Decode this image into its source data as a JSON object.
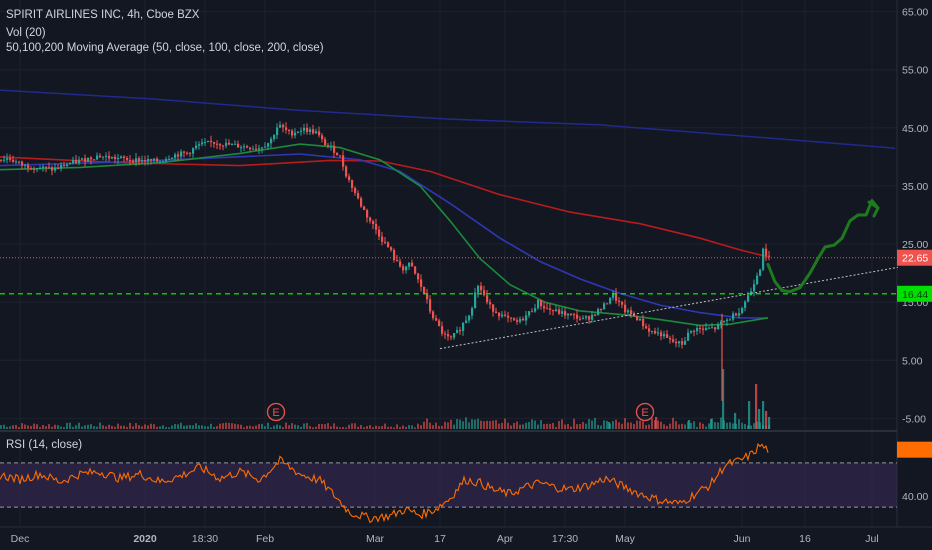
{
  "legend": {
    "symbol": "SPIRIT AIRLINES INC, 4h, Cboe BZX",
    "volume": "Vol (20)",
    "ma": "50,100,200 Moving Average (50, close, 100, close, 200, close)",
    "rsi": "RSI (14, close)"
  },
  "colors": {
    "background": "#131722",
    "up": "#26a69a",
    "down": "#ef5350",
    "ma50": "#1b8a3a",
    "ma100": "#2f37b4",
    "ma200": "#b71c1c",
    "rsi_line": "#ff6d00",
    "rsi_band": "#3b2a5a",
    "support": "#00ff00",
    "projection": "#1e7a1e",
    "resistance_line": "#ef5350"
  },
  "chart_data": {
    "type": "candlestick",
    "price_axis": {
      "ticks": [
        "65.00",
        "55.00",
        "45.00",
        "35.00",
        "25.00",
        "15.00",
        "5.00",
        "-5.00"
      ],
      "tick_values": [
        65,
        55,
        45,
        35,
        25,
        15,
        5,
        -5
      ],
      "ylim": [
        -7,
        67
      ]
    },
    "rsi_axis": {
      "ticks": [
        "80.00",
        "40.00"
      ],
      "tick_values": [
        80,
        40
      ],
      "band": [
        30,
        70
      ],
      "ylim": [
        12,
        98
      ]
    },
    "x_axis": {
      "labels": [
        "Dec",
        "2020",
        "18:30",
        "Feb",
        "Mar",
        "17",
        "Apr",
        "17:30",
        "May",
        "Jun",
        "16",
        "Jul"
      ],
      "bold_labels": [
        "2020"
      ]
    },
    "price_path": [
      [
        0,
        39.5
      ],
      [
        10,
        39.8
      ],
      [
        25,
        38.5
      ],
      [
        40,
        38.2
      ],
      [
        55,
        37.8
      ],
      [
        70,
        38.8
      ],
      [
        85,
        39.5
      ],
      [
        100,
        40.2
      ],
      [
        115,
        39.8
      ],
      [
        130,
        39.6
      ],
      [
        145,
        39.4
      ],
      [
        160,
        39.2
      ],
      [
        175,
        40.3
      ],
      [
        190,
        40.7
      ],
      [
        200,
        42.0
      ],
      [
        215,
        42.5
      ],
      [
        230,
        42.1
      ],
      [
        245,
        41.8
      ],
      [
        260,
        41.5
      ],
      [
        272,
        42.6
      ],
      [
        280,
        45.5
      ],
      [
        292,
        44.0
      ],
      [
        305,
        44.8
      ],
      [
        318,
        44.2
      ],
      [
        325,
        42.5
      ],
      [
        335,
        41.3
      ],
      [
        342,
        40.0
      ],
      [
        348,
        37.0
      ],
      [
        355,
        34.5
      ],
      [
        362,
        32.0
      ],
      [
        370,
        29.5
      ],
      [
        378,
        27.5
      ],
      [
        385,
        25.5
      ],
      [
        392,
        24.0
      ],
      [
        398,
        21.8
      ],
      [
        405,
        20.8
      ],
      [
        412,
        21.5
      ],
      [
        418,
        19.5
      ],
      [
        422,
        18.0
      ],
      [
        427,
        16.2
      ],
      [
        432,
        13.5
      ],
      [
        438,
        11.5
      ],
      [
        445,
        9.5
      ],
      [
        452,
        8.5
      ],
      [
        460,
        10.0
      ],
      [
        467,
        11.8
      ],
      [
        473,
        13.5
      ],
      [
        478,
        18.0
      ],
      [
        484,
        17.0
      ],
      [
        490,
        14.5
      ],
      [
        497,
        13.5
      ],
      [
        505,
        12.5
      ],
      [
        513,
        11.8
      ],
      [
        520,
        11.5
      ],
      [
        527,
        12.5
      ],
      [
        533,
        13.5
      ],
      [
        540,
        15.0
      ],
      [
        547,
        14.0
      ],
      [
        555,
        13.5
      ],
      [
        562,
        13.2
      ],
      [
        570,
        12.8
      ],
      [
        578,
        12.5
      ],
      [
        585,
        12.0
      ],
      [
        592,
        12.5
      ],
      [
        600,
        13.5
      ],
      [
        607,
        14.5
      ],
      [
        614,
        16.5
      ],
      [
        620,
        15.0
      ],
      [
        627,
        13.5
      ],
      [
        634,
        12.8
      ],
      [
        641,
        12.0
      ],
      [
        648,
        10.5
      ],
      [
        655,
        9.8
      ],
      [
        663,
        9.5
      ],
      [
        670,
        8.5
      ],
      [
        677,
        8.0
      ],
      [
        684,
        7.8
      ],
      [
        690,
        9.5
      ],
      [
        697,
        10.5
      ],
      [
        705,
        10.2
      ],
      [
        712,
        10.5
      ],
      [
        718,
        10.5
      ],
      [
        724,
        11.5
      ],
      [
        730,
        12.0
      ],
      [
        737,
        13.0
      ],
      [
        743,
        13.8
      ],
      [
        748,
        15.5
      ],
      [
        753,
        17.0
      ],
      [
        758,
        19.5
      ],
      [
        762,
        21.0
      ],
      [
        765,
        24.5
      ],
      [
        768,
        22.6
      ]
    ],
    "volume_spikes": [
      [
        722,
        6.0
      ],
      [
        734,
        1.6
      ],
      [
        748,
        2.8
      ],
      [
        755,
        4.5
      ],
      [
        758,
        2.0
      ],
      [
        762,
        2.8
      ],
      [
        765,
        1.8
      ],
      [
        768,
        1.2
      ],
      [
        655,
        1.2
      ],
      [
        688,
        0.9
      ],
      [
        710,
        1.0
      ],
      [
        608,
        0.7
      ]
    ],
    "earnings_markers": [
      {
        "label": "E",
        "x": 276
      },
      {
        "label": "E",
        "x": 645
      }
    ],
    "ma50": [
      [
        0,
        37.8
      ],
      [
        80,
        38.2
      ],
      [
        160,
        39.0
      ],
      [
        240,
        40.6
      ],
      [
        300,
        42.2
      ],
      [
        340,
        41.6
      ],
      [
        380,
        39.5
      ],
      [
        420,
        35.0
      ],
      [
        450,
        29.0
      ],
      [
        480,
        22.5
      ],
      [
        510,
        18.0
      ],
      [
        545,
        15.0
      ],
      [
        580,
        13.5
      ],
      [
        620,
        12.9
      ],
      [
        660,
        12.0
      ],
      [
        700,
        11.0
      ],
      [
        730,
        11.2
      ],
      [
        750,
        11.8
      ],
      [
        768,
        12.3
      ]
    ],
    "ma100": [
      [
        0,
        38.5
      ],
      [
        100,
        39.0
      ],
      [
        200,
        39.7
      ],
      [
        300,
        40.5
      ],
      [
        360,
        39.5
      ],
      [
        400,
        37.5
      ],
      [
        450,
        32.0
      ],
      [
        500,
        26.0
      ],
      [
        540,
        22.0
      ],
      [
        580,
        19.0
      ],
      [
        620,
        16.5
      ],
      [
        660,
        14.5
      ],
      [
        700,
        13.2
      ],
      [
        740,
        12.3
      ],
      [
        768,
        12.3
      ]
    ],
    "ma200_long": [
      [
        0,
        51.5
      ],
      [
        150,
        50.0
      ],
      [
        300,
        48.0
      ],
      [
        450,
        46.5
      ],
      [
        600,
        45.5
      ],
      [
        750,
        43.5
      ],
      [
        895,
        41.5
      ]
    ],
    "ma200": [
      [
        0,
        40.0
      ],
      [
        120,
        39.0
      ],
      [
        240,
        38.5
      ],
      [
        330,
        39.4
      ],
      [
        380,
        39.3
      ],
      [
        430,
        37.5
      ],
      [
        500,
        33.5
      ],
      [
        570,
        30.5
      ],
      [
        640,
        28.5
      ],
      [
        700,
        26.0
      ],
      [
        740,
        24.0
      ],
      [
        768,
        22.8
      ]
    ],
    "trendline": {
      "from": [
        440,
        7.0
      ],
      "to": [
        898,
        21.0
      ]
    },
    "support_level": {
      "value": 16.44,
      "label": "16.44"
    },
    "current_price": {
      "value": 22.65,
      "label": "22.65"
    },
    "projection": [
      [
        768,
        21.5
      ],
      [
        775,
        18.5
      ],
      [
        782,
        17.0
      ],
      [
        790,
        16.8
      ],
      [
        800,
        17.5
      ],
      [
        810,
        20.0
      ],
      [
        818,
        22.5
      ],
      [
        825,
        24.5
      ],
      [
        834,
        24.8
      ],
      [
        842,
        26.0
      ],
      [
        850,
        29.0
      ],
      [
        858,
        30.0
      ],
      [
        866,
        30.0
      ],
      [
        872,
        32.5
      ],
      [
        878,
        31.2
      ]
    ],
    "rsi_path": [
      [
        0,
        59
      ],
      [
        20,
        55
      ],
      [
        40,
        60
      ],
      [
        60,
        53
      ],
      [
        80,
        60
      ],
      [
        100,
        62
      ],
      [
        120,
        56
      ],
      [
        140,
        60
      ],
      [
        160,
        53
      ],
      [
        180,
        58
      ],
      [
        200,
        66
      ],
      [
        220,
        56
      ],
      [
        240,
        62
      ],
      [
        260,
        55
      ],
      [
        280,
        72
      ],
      [
        300,
        60
      ],
      [
        320,
        54
      ],
      [
        335,
        40
      ],
      [
        350,
        25
      ],
      [
        370,
        20
      ],
      [
        390,
        22
      ],
      [
        405,
        28
      ],
      [
        420,
        23
      ],
      [
        435,
        28
      ],
      [
        450,
        38
      ],
      [
        465,
        55
      ],
      [
        480,
        52
      ],
      [
        495,
        45
      ],
      [
        510,
        42
      ],
      [
        525,
        48
      ],
      [
        540,
        52
      ],
      [
        555,
        48
      ],
      [
        570,
        46
      ],
      [
        590,
        50
      ],
      [
        605,
        56
      ],
      [
        620,
        50
      ],
      [
        640,
        42
      ],
      [
        660,
        36
      ],
      [
        680,
        33
      ],
      [
        695,
        42
      ],
      [
        710,
        50
      ],
      [
        725,
        68
      ],
      [
        740,
        72
      ],
      [
        752,
        78
      ],
      [
        760,
        86
      ],
      [
        768,
        82
      ]
    ]
  }
}
